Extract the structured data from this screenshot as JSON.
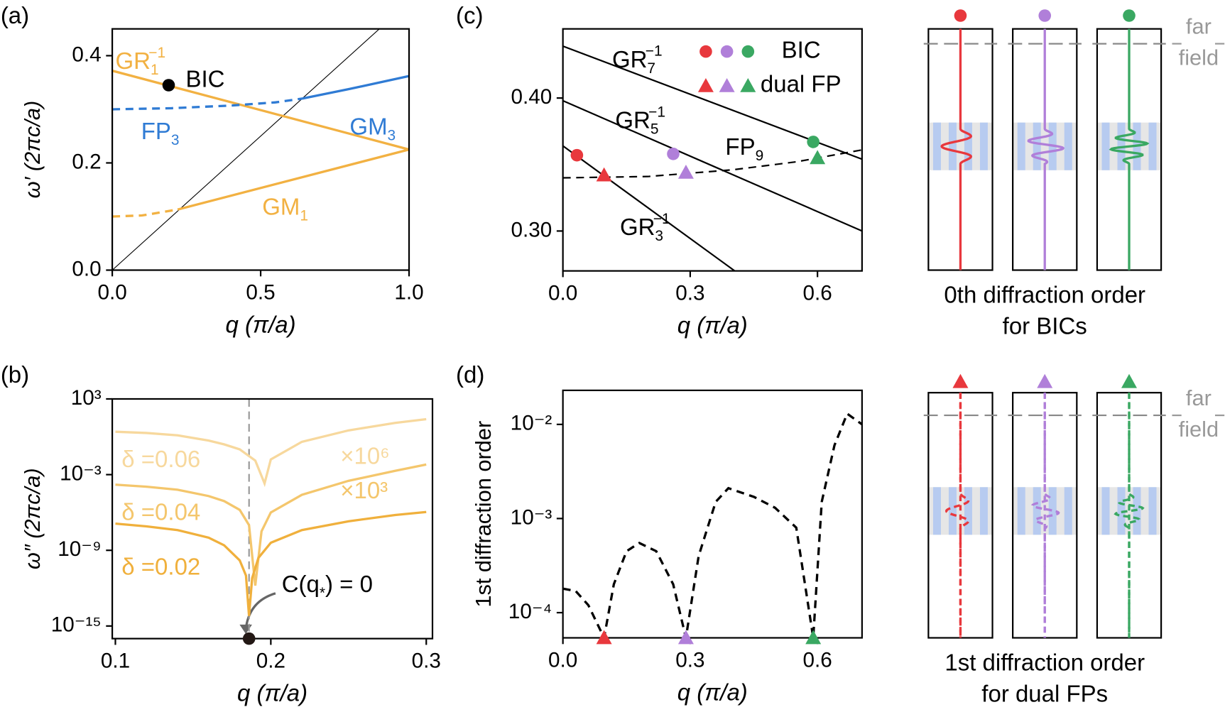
{
  "chart_data": [
    {
      "type": "line",
      "label": "(a)",
      "xlabel": "q (π/a)",
      "ylabel": "ω′ (2πc/a)",
      "xlim": [
        0,
        1
      ],
      "ylim": [
        0,
        0.45
      ],
      "xticks": [
        {
          "value": 0,
          "label": "0.0"
        },
        {
          "value": 0.5,
          "label": "0.5"
        },
        {
          "value": 1,
          "label": "1.0"
        }
      ],
      "yticks": [
        {
          "value": 0,
          "label": "0.0"
        },
        {
          "value": 0.2,
          "label": "0.2"
        },
        {
          "value": 0.4,
          "label": "0.4"
        }
      ],
      "series": [
        {
          "mode": "line",
          "color": "#000000",
          "width": 1,
          "x": [
            0,
            0.9
          ],
          "values": [
            0,
            0.45
          ]
        },
        {
          "mode": "line",
          "color": "#f2b142",
          "width": 3,
          "x": [
            0,
            1
          ],
          "values": [
            0.372,
            0.225
          ]
        },
        {
          "mode": "line",
          "color": "#f2b142",
          "width": 3,
          "x": [
            0.22,
            1
          ],
          "values": [
            0.113,
            0.225
          ]
        },
        {
          "mode": "line",
          "color": "#f2b142",
          "width": 3,
          "dash": true,
          "x": [
            0,
            0.1,
            0.22
          ],
          "values": [
            0.1,
            0.102,
            0.113
          ]
        },
        {
          "mode": "line",
          "color": "#2f7bd4",
          "width": 3,
          "dash": true,
          "x": [
            0,
            0.2,
            0.4,
            0.55,
            0.64
          ],
          "values": [
            0.3,
            0.302,
            0.307,
            0.313,
            0.32
          ]
        },
        {
          "mode": "line",
          "color": "#2f7bd4",
          "width": 3,
          "x": [
            0.64,
            0.8,
            1
          ],
          "values": [
            0.32,
            0.338,
            0.362
          ]
        },
        {
          "mode": "markers",
          "marker": "circle",
          "colors": [
            "#000000"
          ],
          "x": [
            0.19
          ],
          "values": [
            0.345
          ]
        }
      ],
      "annotations": [
        {
          "text": "GR",
          "sub": "1",
          "sup": "−1",
          "color": "#f2b142"
        },
        {
          "text": "BIC",
          "color": "#000000"
        },
        {
          "text": "FP",
          "sub": "3",
          "color": "#2f7bd4"
        },
        {
          "text": "GM",
          "sub": "3",
          "color": "#2f7bd4"
        },
        {
          "text": "GM",
          "sub": "1",
          "color": "#f2b142"
        }
      ]
    },
    {
      "type": "line",
      "label": "(b)",
      "xlabel": "q (π/a)",
      "ylabel": "ω″ (2πc/a)",
      "log_y": true,
      "xlim": [
        0.098,
        0.304
      ],
      "ylim": [
        1e-16,
        1000
      ],
      "xticks": [
        0.1,
        0.2,
        0.3
      ],
      "yticks": [
        {
          "value": 1000,
          "label": "10³"
        },
        {
          "value": 0.001,
          "label": "10⁻³"
        },
        {
          "value": 1e-09,
          "label": "10⁻⁹"
        },
        {
          "value": 1e-15,
          "label": "10⁻¹⁵"
        }
      ],
      "vline": 0.186,
      "series": [
        {
          "mode": "line",
          "color": "#f7d89d",
          "width": 3,
          "x": [
            0.1,
            0.12,
            0.14,
            0.16,
            0.17,
            0.18,
            0.19,
            0.196,
            0.2,
            0.22,
            0.25,
            0.28,
            0.3
          ],
          "values": [
            2.5,
            2,
            1.3,
            0.5,
            0.25,
            0.1,
            0.013,
            0.0002,
            0.016,
            0.4,
            3.2,
            12.6,
            25
          ]
        },
        {
          "mode": "line",
          "color": "#f4c66c",
          "width": 3,
          "x": [
            0.1,
            0.12,
            0.14,
            0.16,
            0.17,
            0.18,
            0.186,
            0.19,
            0.194,
            0.2,
            0.22,
            0.25,
            0.28,
            0.3
          ],
          "values": [
            0.00016,
            0.00011,
            6.3e-05,
            2e-05,
            7.9e-06,
            1.6e-06,
            1e-07,
            1.6e-12,
            3.2e-08,
            1e-06,
            2.5e-05,
            0.00032,
            0.002,
            0.0063
          ]
        },
        {
          "mode": "line",
          "color": "#f0b03c",
          "width": 3,
          "x": [
            0.1,
            0.12,
            0.14,
            0.16,
            0.17,
            0.18,
            0.184,
            0.186,
            0.188,
            0.192,
            0.2,
            0.22,
            0.25,
            0.28,
            0.3
          ],
          "values": [
            1.3e-07,
            7.9e-08,
            4e-08,
            1e-08,
            2.5e-09,
            1.6e-10,
            1e-11,
            6.3e-15,
            6.3e-12,
            2.5e-10,
            4e-09,
            4e-08,
            2e-07,
            6.3e-07,
            1.1e-06
          ]
        },
        {
          "mode": "markers",
          "marker": "circle",
          "colors": [
            "#231815"
          ],
          "x": [
            0.186
          ],
          "values": [
            1e-16
          ]
        }
      ],
      "annotations": [
        {
          "text": "δ =0.06",
          "color": "#f7d89d"
        },
        {
          "text": "δ =0.04",
          "color": "#f4c66c"
        },
        {
          "text": "δ =0.02",
          "color": "#f0b03c"
        },
        {
          "text": "×10⁶",
          "color": "#f7d89d"
        },
        {
          "text": "×10³",
          "color": "#f4c66c"
        },
        {
          "text": "C(q",
          "sub": "*",
          "tail": ") = 0",
          "color": "#000000"
        }
      ]
    },
    {
      "type": "line",
      "label": "(c)",
      "xlabel": "q (π/a)",
      "ylabel": "",
      "xlim": [
        0,
        0.705
      ],
      "ylim": [
        0.27,
        0.452
      ],
      "xticks": [
        {
          "value": 0,
          "label": "0.0"
        },
        0.3,
        0.6
      ],
      "yticks": [
        {
          "value": 0.3,
          "label": "0.30"
        },
        {
          "value": 0.4,
          "label": "0.40"
        }
      ],
      "series": [
        {
          "mode": "line",
          "color": "#000000",
          "width": 2,
          "x": [
            0,
            0.705
          ],
          "values": [
            0.439,
            0.354
          ]
        },
        {
          "mode": "line",
          "color": "#000000",
          "width": 2,
          "x": [
            0,
            0.705
          ],
          "values": [
            0.398,
            0.3
          ]
        },
        {
          "mode": "line",
          "color": "#000000",
          "width": 2,
          "x": [
            0,
            0.405
          ],
          "values": [
            0.364,
            0.27
          ]
        },
        {
          "mode": "line",
          "color": "#000000",
          "width": 2,
          "dash": true,
          "x": [
            0,
            0.2,
            0.4,
            0.55,
            0.705
          ],
          "values": [
            0.34,
            0.341,
            0.346,
            0.352,
            0.361
          ]
        },
        {
          "mode": "markers",
          "marker": "circle",
          "name": "BIC",
          "colors": [
            "#e8383d",
            "#b07fd9",
            "#3aa862"
          ],
          "x": [
            0.033,
            0.26,
            0.59
          ],
          "values": [
            0.357,
            0.358,
            0.367
          ]
        },
        {
          "mode": "markers",
          "marker": "triangle",
          "name": "dual FP",
          "colors": [
            "#e8383d",
            "#b07fd9",
            "#3aa862"
          ],
          "x": [
            0.097,
            0.29,
            0.6
          ],
          "values": [
            0.342,
            0.344,
            0.355
          ]
        }
      ],
      "annotations": [
        {
          "text": "GR",
          "sub": "7",
          "sup": "−1",
          "color": "#000000"
        },
        {
          "text": "GR",
          "sub": "5",
          "sup": "−1",
          "color": "#000000"
        },
        {
          "text": "FP",
          "sub": "9",
          "color": "#000000"
        },
        {
          "text": "GR",
          "sub": "3",
          "sup": "−1",
          "color": "#000000"
        }
      ]
    },
    {
      "type": "line",
      "label": "(d)",
      "xlabel": "q (π/a)",
      "ylabel": "1st diffraction order",
      "log_y": true,
      "xlim": [
        0,
        0.705
      ],
      "ylim": [
        5.4e-05,
        0.023
      ],
      "xticks": [
        {
          "value": 0,
          "label": "0.0"
        },
        0.3,
        0.6
      ],
      "yticks": [
        {
          "value": 0.01,
          "label": "10⁻²"
        },
        {
          "value": 0.001,
          "label": "10⁻³"
        },
        {
          "value": 0.0001,
          "label": "10⁻⁴"
        }
      ],
      "series": [
        {
          "mode": "line",
          "color": "#000000",
          "width": 3,
          "dash": true,
          "x": [
            0,
            0.03,
            0.06,
            0.097,
            0.12,
            0.15,
            0.18,
            0.22,
            0.26,
            0.29,
            0.32,
            0.36,
            0.39,
            0.45,
            0.5,
            0.55,
            0.59,
            0.61,
            0.64,
            0.67,
            0.705
          ],
          "values": [
            0.00018,
            0.00017,
            0.00012,
            5.4e-05,
            0.0002,
            0.00045,
            0.00055,
            0.00045,
            0.0002,
            5.4e-05,
            0.0004,
            0.0015,
            0.0021,
            0.0017,
            0.0013,
            0.0008,
            5.4e-05,
            0.0015,
            0.006,
            0.013,
            0.01
          ]
        },
        {
          "mode": "markers",
          "marker": "triangle",
          "colors": [
            "#e8383d",
            "#b07fd9",
            "#3aa862"
          ],
          "x": [
            0.097,
            0.29,
            0.59
          ],
          "values": [
            5.4e-05,
            5.4e-05,
            5.4e-05
          ]
        }
      ],
      "annotations": []
    }
  ],
  "schematics": {
    "colors": [
      "#e8383d",
      "#b07fd9",
      "#3aa862"
    ],
    "far_field": [
      "far",
      "field"
    ],
    "top_caption": [
      "0th diffraction order",
      "for BICs"
    ],
    "bottom_caption": [
      "1st diffraction order",
      "for dual FPs"
    ]
  }
}
